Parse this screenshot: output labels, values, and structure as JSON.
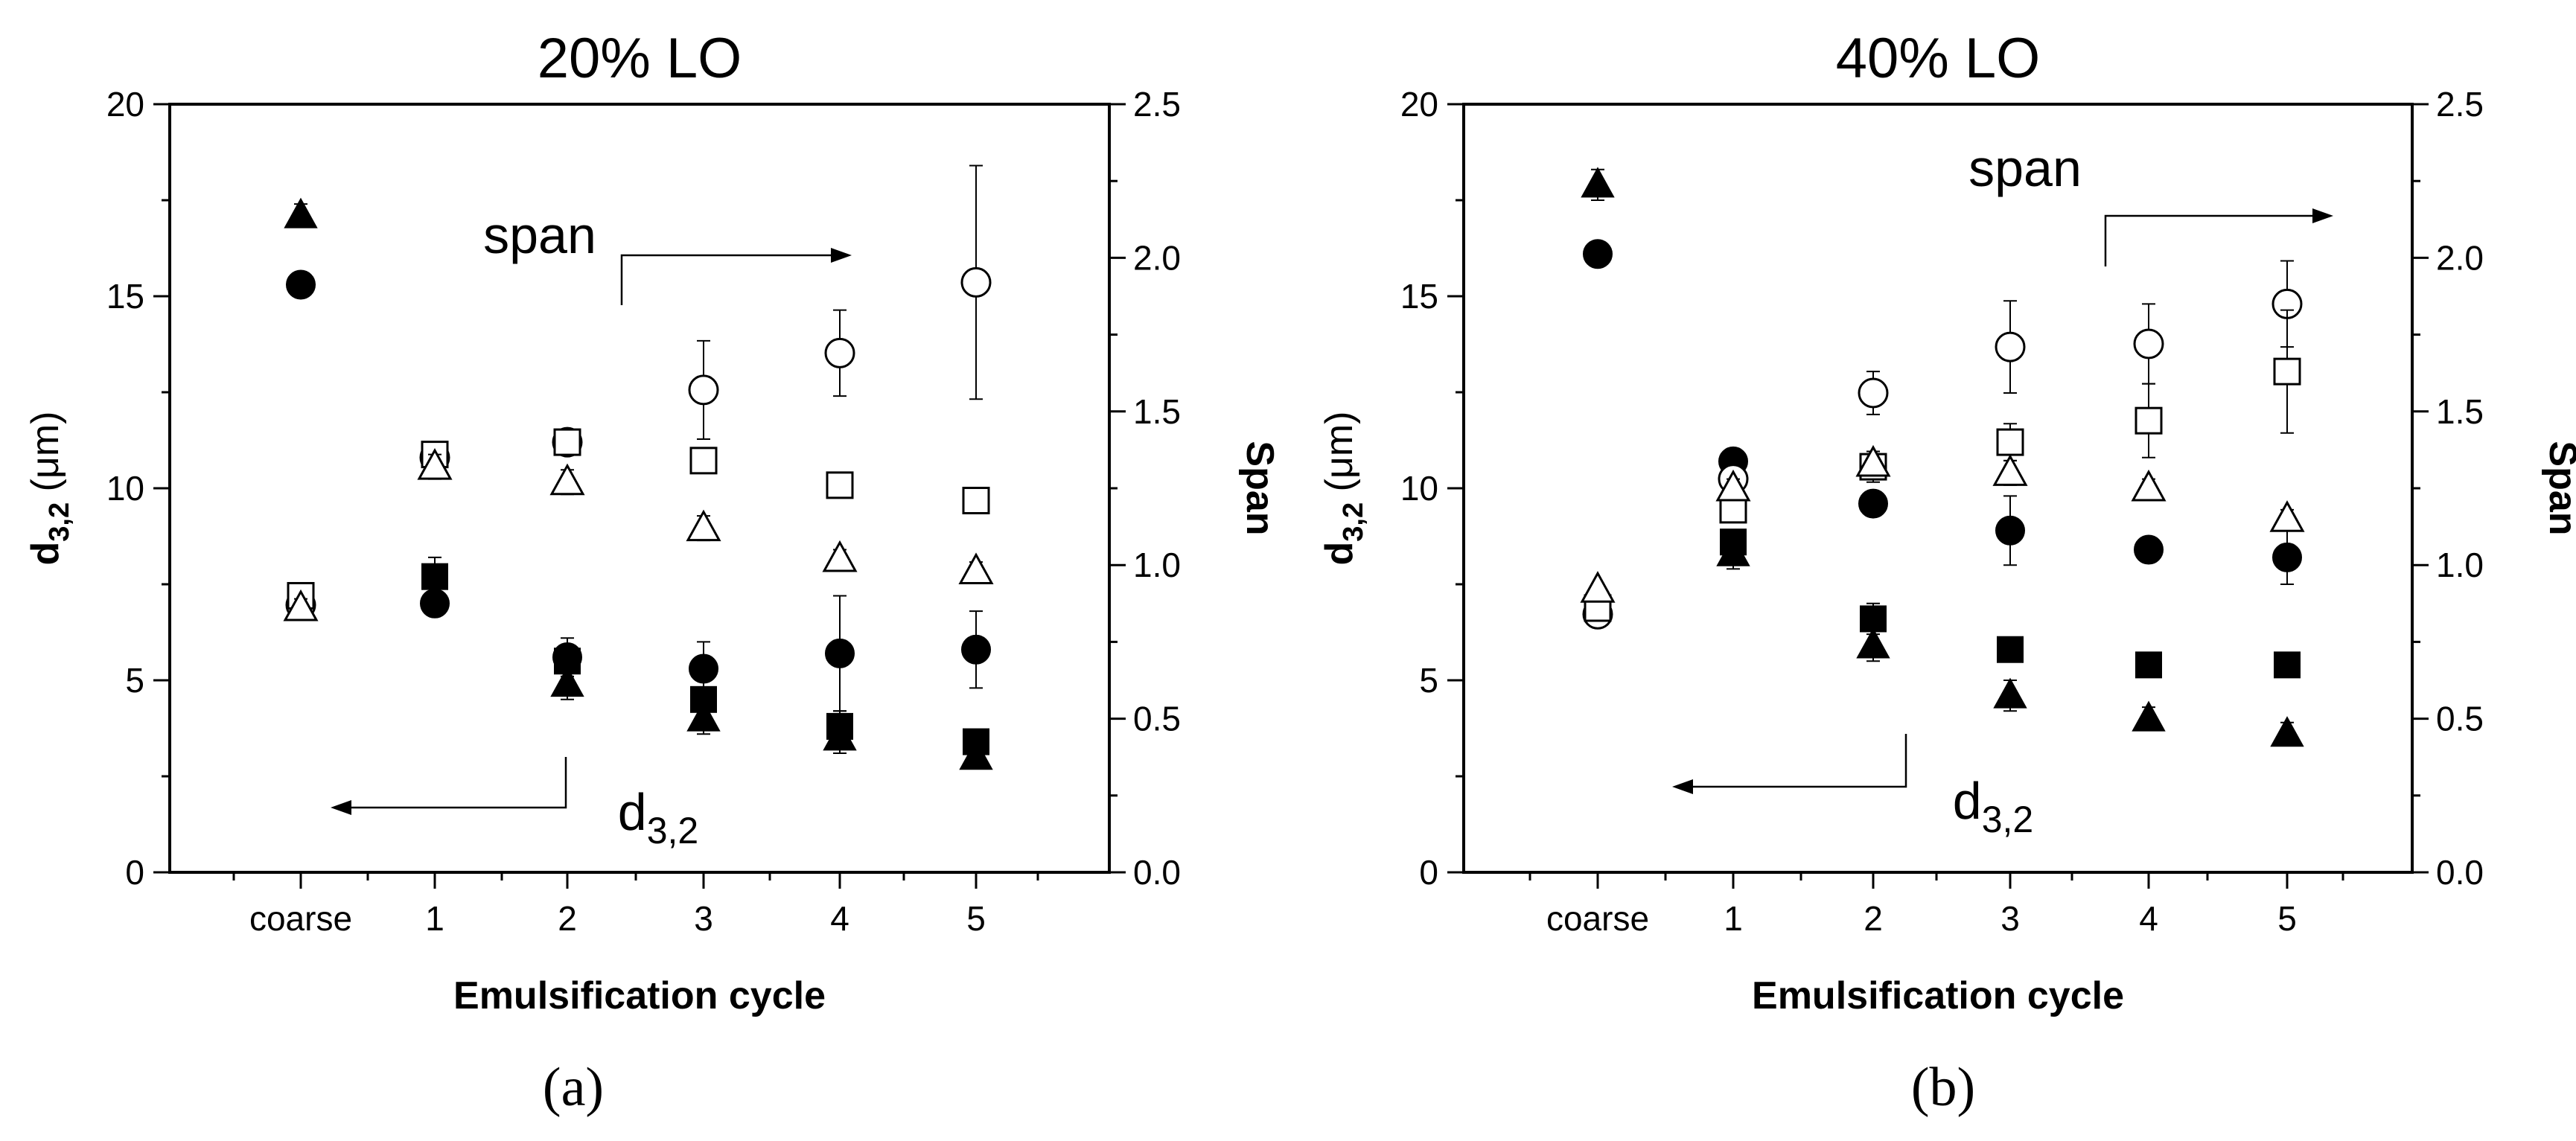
{
  "chart_data": [
    {
      "type": "scatter",
      "panel_label": "(a)",
      "title": "20% LO",
      "xlabel": "Emulsification cycle",
      "ylabel_main": "d",
      "ylabel_sub": "3,2",
      "ylabel_unit": " (μm)",
      "y2label": "Span",
      "categories": [
        "coarse",
        "1",
        "2",
        "3",
        "4",
        "5"
      ],
      "ylim": [
        0,
        20
      ],
      "y2lim": [
        0,
        2.5
      ],
      "yticks": [
        "0",
        "5",
        "10",
        "15",
        "20"
      ],
      "y2ticks": [
        "0.0",
        "0.5",
        "1.0",
        "1.5",
        "2.0",
        "2.5"
      ],
      "annotations": {
        "span": "span",
        "d_main": "d",
        "d_sub": "3,2"
      },
      "series": [
        {
          "name": "d3,2 triangle",
          "axis": "left",
          "marker": "triangle",
          "filled": true,
          "values": [
            17.1,
            null,
            4.9,
            4.0,
            3.5,
            3.0
          ],
          "err": [
            0.3,
            0,
            0.4,
            0.4,
            0.4,
            0.3
          ]
        },
        {
          "name": "d3,2 circle",
          "axis": "left",
          "marker": "circle",
          "filled": true,
          "values": [
            15.3,
            7.0,
            5.6,
            5.3,
            5.7,
            5.8
          ],
          "err": [
            0.3,
            0,
            0.5,
            0.7,
            1.5,
            1.0
          ]
        },
        {
          "name": "d3,2 square",
          "axis": "left",
          "marker": "square",
          "filled": true,
          "values": [
            null,
            7.7,
            5.5,
            4.5,
            3.8,
            3.4
          ],
          "err": [
            0,
            0.5,
            0.4,
            0.5,
            0.4,
            0.3
          ]
        },
        {
          "name": "span circle",
          "axis": "right",
          "marker": "circle",
          "filled": false,
          "values": [
            0.87,
            1.35,
            1.4,
            1.57,
            1.69,
            1.92
          ],
          "err": [
            0.03,
            0.04,
            0.04,
            0.16,
            0.14,
            0.38
          ]
        },
        {
          "name": "span square",
          "axis": "right",
          "marker": "square",
          "filled": false,
          "values": [
            0.9,
            1.36,
            1.4,
            1.34,
            1.26,
            1.21
          ],
          "err": [
            0.03,
            0.04,
            0.04,
            0.03,
            0.03,
            0.04
          ]
        },
        {
          "name": "span triangle",
          "axis": "right",
          "marker": "triangle",
          "filled": false,
          "values": [
            0.86,
            1.32,
            1.27,
            1.12,
            1.02,
            0.98
          ],
          "err": [
            0.03,
            0.04,
            0.04,
            0.04,
            0.03,
            0.03
          ]
        }
      ]
    },
    {
      "type": "scatter",
      "panel_label": "(b)",
      "title": "40% LO",
      "xlabel": "Emulsification cycle",
      "ylabel_main": "d",
      "ylabel_sub": "3,2",
      "ylabel_unit": " (μm)",
      "y2label": "Span",
      "categories": [
        "coarse",
        "1",
        "2",
        "3",
        "4",
        "5"
      ],
      "ylim": [
        0,
        20
      ],
      "y2lim": [
        0,
        2.5
      ],
      "yticks": [
        "0",
        "5",
        "10",
        "15",
        "20"
      ],
      "y2ticks": [
        "0.0",
        "0.5",
        "1.0",
        "1.5",
        "2.0",
        "2.5"
      ],
      "annotations": {
        "span": "span",
        "d_main": "d",
        "d_sub": "3,2"
      },
      "series": [
        {
          "name": "d3,2 triangle",
          "axis": "left",
          "marker": "triangle",
          "filled": true,
          "values": [
            17.9,
            8.3,
            5.9,
            4.6,
            4.0,
            3.6
          ],
          "err": [
            0.4,
            0.4,
            0.4,
            0.4,
            0.3,
            0.3
          ]
        },
        {
          "name": "d3,2 circle",
          "axis": "left",
          "marker": "circle",
          "filled": true,
          "values": [
            16.1,
            10.7,
            9.6,
            8.9,
            8.4,
            8.2
          ],
          "err": [
            0.2,
            0.2,
            0.3,
            0.9,
            0.3,
            0.7
          ]
        },
        {
          "name": "d3,2 square",
          "axis": "left",
          "marker": "square",
          "filled": true,
          "values": [
            null,
            8.6,
            6.6,
            5.8,
            5.4,
            5.4
          ],
          "err": [
            0,
            0.3,
            0.4,
            0.2,
            0.2,
            0.3
          ]
        },
        {
          "name": "span circle",
          "axis": "right",
          "marker": "circle",
          "filled": false,
          "values": [
            0.84,
            1.28,
            1.56,
            1.71,
            1.72,
            1.85
          ],
          "err": [
            0.02,
            0.03,
            0.07,
            0.15,
            0.13,
            0.14
          ]
        },
        {
          "name": "span square",
          "axis": "right",
          "marker": "square",
          "filled": false,
          "values": [
            0.86,
            1.18,
            1.32,
            1.4,
            1.47,
            1.63
          ],
          "err": [
            0.02,
            0.03,
            0.05,
            0.06,
            0.12,
            0.2
          ]
        },
        {
          "name": "span triangle",
          "axis": "right",
          "marker": "triangle",
          "filled": false,
          "values": [
            0.92,
            1.25,
            1.33,
            1.3,
            1.25,
            1.15
          ],
          "err": [
            0.02,
            0.03,
            0.04,
            0.04,
            0.03,
            0.03
          ]
        }
      ]
    }
  ]
}
